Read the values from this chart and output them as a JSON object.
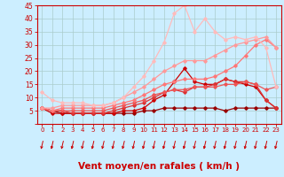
{
  "xlabel": "Vent moyen/en rafales ( km/h )",
  "background_color": "#cceeff",
  "grid_color": "#aacccc",
  "x": [
    0,
    1,
    2,
    3,
    4,
    5,
    6,
    7,
    8,
    9,
    10,
    11,
    12,
    13,
    14,
    15,
    16,
    17,
    18,
    19,
    20,
    21,
    22,
    23
  ],
  "lines": [
    {
      "y": [
        6,
        5,
        4,
        4,
        4,
        4,
        4,
        4,
        4,
        4,
        5,
        5,
        6,
        6,
        6,
        6,
        6,
        6,
        5,
        6,
        6,
        6,
        6,
        6
      ],
      "color": "#990000",
      "lw": 0.9,
      "marker": "D",
      "ms": 1.8
    },
    {
      "y": [
        6,
        4,
        4,
        4,
        4,
        4,
        4,
        4,
        5,
        5,
        6,
        9,
        11,
        16,
        21,
        16,
        15,
        15,
        17,
        16,
        15,
        14,
        9,
        6
      ],
      "color": "#cc0000",
      "lw": 0.9,
      "marker": "D",
      "ms": 1.8
    },
    {
      "y": [
        6,
        5,
        5,
        4,
        4,
        4,
        4,
        5,
        6,
        7,
        8,
        10,
        12,
        13,
        12,
        14,
        14,
        15,
        17,
        16,
        16,
        15,
        9,
        6
      ],
      "color": "#dd3333",
      "lw": 0.9,
      "marker": "D",
      "ms": 1.8
    },
    {
      "y": [
        6,
        5,
        5,
        5,
        5,
        5,
        5,
        6,
        7,
        8,
        9,
        11,
        12,
        13,
        13,
        14,
        14,
        14,
        15,
        15,
        16,
        15,
        13,
        14
      ],
      "color": "#ee5555",
      "lw": 0.9,
      "marker": "D",
      "ms": 1.8
    },
    {
      "y": [
        6,
        5,
        6,
        6,
        6,
        6,
        6,
        7,
        8,
        9,
        11,
        13,
        15,
        16,
        17,
        17,
        17,
        18,
        20,
        22,
        26,
        30,
        32,
        29
      ],
      "color": "#ff7777",
      "lw": 0.9,
      "marker": "D",
      "ms": 1.8
    },
    {
      "y": [
        6,
        6,
        7,
        7,
        7,
        7,
        7,
        8,
        10,
        12,
        14,
        17,
        20,
        22,
        24,
        24,
        24,
        26,
        28,
        30,
        31,
        32,
        33,
        29
      ],
      "color": "#ff9999",
      "lw": 0.9,
      "marker": "D",
      "ms": 1.8
    },
    {
      "y": [
        12,
        9,
        8,
        8,
        8,
        7,
        7,
        8,
        10,
        14,
        18,
        24,
        31,
        42,
        45,
        35,
        40,
        35,
        32,
        33,
        32,
        33,
        29,
        14
      ],
      "color": "#ffbbbb",
      "lw": 0.9,
      "marker": "D",
      "ms": 1.8
    }
  ],
  "ylim": [
    0,
    45
  ],
  "yticks": [
    0,
    5,
    10,
    15,
    20,
    25,
    30,
    35,
    40,
    45
  ],
  "xticks": [
    0,
    1,
    2,
    3,
    4,
    5,
    6,
    7,
    8,
    9,
    10,
    11,
    12,
    13,
    14,
    15,
    16,
    17,
    18,
    19,
    20,
    21,
    22,
    23
  ],
  "tick_color": "#cc0000",
  "xlabel_color": "#cc0000",
  "xlabel_fontsize": 7.5,
  "arrow_color": "#cc0000",
  "spine_color": "#cc0000"
}
